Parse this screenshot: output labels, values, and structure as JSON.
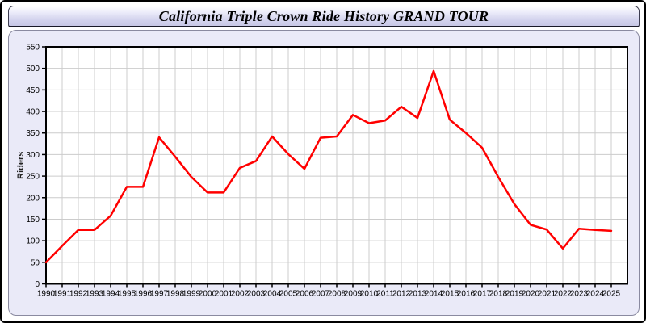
{
  "header": {
    "title": "California Triple Crown Ride History GRAND TOUR"
  },
  "chart_data": {
    "type": "line",
    "title": "California Triple Crown Ride History GRAND TOUR",
    "xlabel": "",
    "ylabel": "Riders",
    "ylim": [
      0,
      550
    ],
    "yticks": [
      0,
      50,
      100,
      150,
      200,
      250,
      300,
      350,
      400,
      450,
      500,
      550
    ],
    "grid": true,
    "legend_position": "none",
    "categories": [
      1990,
      1991,
      1992,
      1993,
      1994,
      1995,
      1996,
      1997,
      1998,
      1999,
      2000,
      2001,
      2002,
      2003,
      2004,
      2005,
      2006,
      2007,
      2008,
      2009,
      2010,
      2011,
      2012,
      2013,
      2014,
      2015,
      2016,
      2017,
      2018,
      2019,
      2020,
      2021,
      2022,
      2023,
      2024,
      2025
    ],
    "series": [
      {
        "name": "Riders",
        "values": [
          50,
          88,
          125,
          125,
          158,
          225,
          225,
          340,
          295,
          248,
          212,
          212,
          269,
          285,
          342,
          301,
          267,
          339,
          342,
          392,
          373,
          379,
          411,
          385,
          494,
          381,
          350,
          316,
          248,
          185,
          137,
          126,
          82,
          128,
          125,
          123
        ]
      }
    ],
    "line_color": "#ff0000"
  },
  "colors": {
    "panel_background": "#eaeaf8",
    "plot_background": "#ffffff",
    "gridline": "#cccccc",
    "axis": "#000000",
    "title_text": "#000000",
    "line": "#ff0000"
  }
}
